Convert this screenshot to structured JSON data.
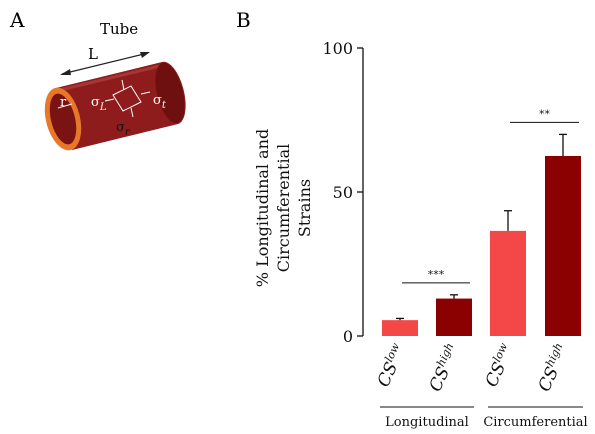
{
  "panel_a": {
    "letter": "A",
    "title": "Tube",
    "length_label": "L",
    "radius_label": "r",
    "sigma": "σ",
    "sub_L": "L",
    "sub_t": "t",
    "sub_r": "r"
  },
  "panel_b": {
    "letter": "B"
  },
  "colors": {
    "low": "#f44747",
    "high": "#8b0000",
    "tube_body": "#8e1c1c",
    "tube_end": "#e8772a"
  },
  "chart_data": {
    "type": "bar",
    "ylabel_lines": [
      "% Longitudinal and",
      "Circumferential",
      "Strains"
    ],
    "yticks": [
      "0",
      "50",
      "100"
    ],
    "ylim": [
      0,
      100
    ],
    "bars": [
      {
        "group": "Longitudinal",
        "label_base": "CS",
        "label_sup": "low",
        "value": 5.5,
        "err": 0.6,
        "series": "low"
      },
      {
        "group": "Longitudinal",
        "label_base": "CS",
        "label_sup": "high",
        "value": 13.0,
        "err": 1.3,
        "series": "high"
      },
      {
        "group": "Circumferential",
        "label_base": "CS",
        "label_sup": "low",
        "value": 36.5,
        "err": 7.0,
        "series": "low"
      },
      {
        "group": "Circumferential",
        "label_base": "CS",
        "label_sup": "high",
        "value": 62.5,
        "err": 7.5,
        "series": "high"
      }
    ],
    "groups": [
      "Longitudinal",
      "Circumferential"
    ],
    "significance": [
      {
        "group": "Longitudinal",
        "stars": "***"
      },
      {
        "group": "Circumferential",
        "stars": "**"
      }
    ]
  }
}
